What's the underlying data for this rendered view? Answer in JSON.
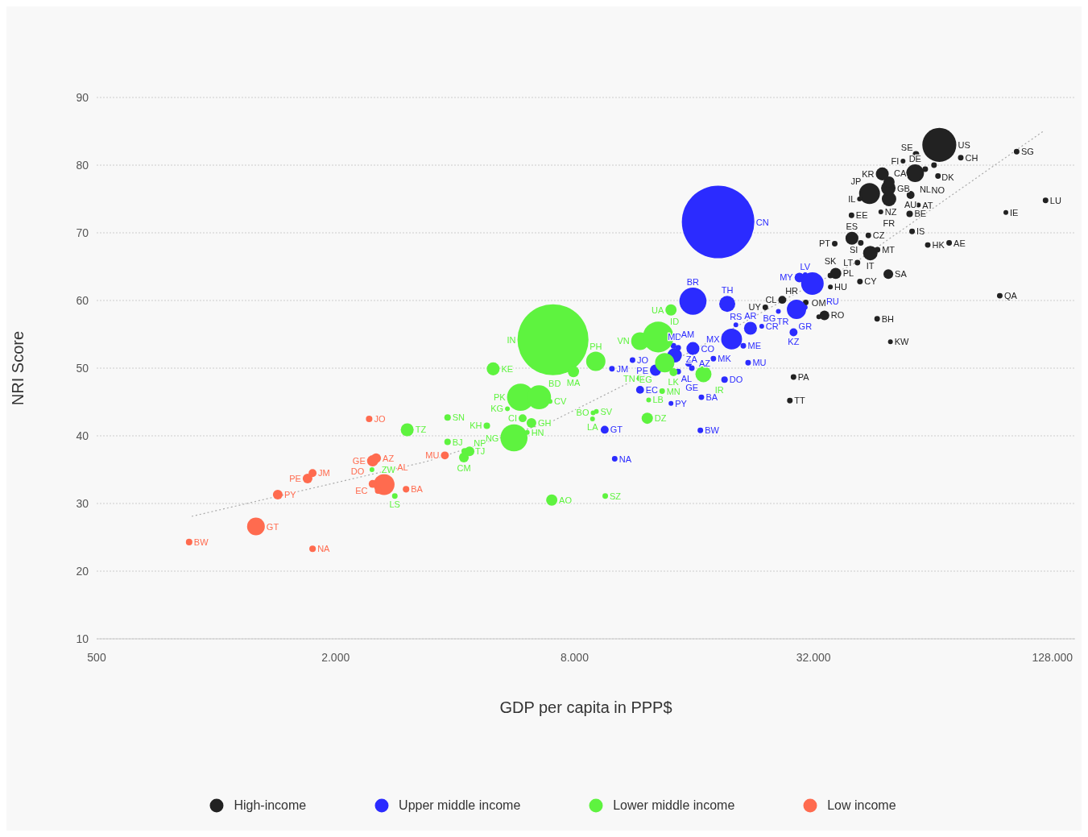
{
  "chart_data": {
    "type": "bubble",
    "xlabel": "GDP per capita in PPP$",
    "ylabel": "NRI Score",
    "log": "x",
    "grid": "y",
    "legend": "bottom",
    "xlim": [
      500,
      146000
    ],
    "xticks": [
      500,
      {
        "value": 2000,
        "label": "2.000"
      },
      {
        "value": 8000,
        "label": "8.000"
      },
      {
        "value": 32000,
        "label": "32.000"
      },
      {
        "value": 128000,
        "label": "128.000"
      }
    ],
    "ylim": [
      10,
      90
    ],
    "yticks": [
      10,
      20,
      30,
      40,
      50,
      60,
      70,
      80,
      90
    ],
    "series": [
      {
        "type": "line",
        "color": "#aaaaaa",
        "line_style": "dotted",
        "x": [
          868,
          3390,
          7060,
          16400,
          29000,
          40300,
          122000
        ],
        "values": [
          28.1,
          36.2,
          42.2,
          53.0,
          61.1,
          65.4,
          85.1
        ]
      },
      {
        "name": "High-income",
        "color": "#222222",
        "x": [
          24200,
          26700,
          30600,
          33000,
          34100,
          28500,
          27900,
          46300,
          50000,
          94300,
          35300,
          41900,
          35300,
          36400,
          49400,
          41300,
          44500,
          46400,
          42100,
          36200,
          40000,
          44000,
          56700,
          62100,
          70300,
          39900,
          47300,
          55900,
          49600,
          49400,
          49600,
          47700,
          44300,
          41800,
          56200,
          58800,
          57700,
          61200,
          53800,
          58000,
          66400,
          64400,
          65900,
          75200,
          104000,
          123000,
          97700
        ],
        "values": [
          59.0,
          60.1,
          59.7,
          57.6,
          57.8,
          48.7,
          45.2,
          57.3,
          53.9,
          60.7,
          62.0,
          62.8,
          63.7,
          64.0,
          63.9,
          65.6,
          67.0,
          67.5,
          68.5,
          68.4,
          69.2,
          69.6,
          70.2,
          68.2,
          68.5,
          72.6,
          73.1,
          72.8,
          75.0,
          76.6,
          77.5,
          78.7,
          75.8,
          75.0,
          75.6,
          74.1,
          78.8,
          79.4,
          80.6,
          81.6,
          83.0,
          80.0,
          78.4,
          81.1,
          82.0,
          74.8,
          73.0
        ],
        "sizes": [
          0.006,
          0.012,
          0.006,
          0.0044,
          0.018,
          0.006,
          0.006,
          0.006,
          0.0044,
          0.006,
          0.0044,
          0.006,
          0.006,
          0.024,
          0.018,
          0.006,
          0.04,
          0.006,
          0.006,
          0.006,
          0.032,
          0.006,
          0.006,
          0.006,
          0.006,
          0.006,
          0.0044,
          0.008,
          0.04,
          0.04,
          0.024,
          0.032,
          0.083,
          0.0044,
          0.012,
          0.0044,
          0.06,
          0.006,
          0.0044,
          0.008,
          0.22,
          0.006,
          0.006,
          0.006,
          0.006,
          0.006,
          0.0044
        ],
        "value_labels": [
          "UY",
          "CL",
          "HR",
          "OM",
          "RO",
          "PA",
          "TT",
          "BH",
          "KW",
          "QA",
          "HU",
          "CY",
          "SK",
          "PL",
          "SA",
          "LT",
          "IT",
          "MT",
          "SI",
          "PT",
          "ES",
          "CZ",
          "IS",
          "HK",
          "AE",
          "EE",
          "NZ",
          "BE",
          "FR",
          "GB",
          "CA",
          "KR",
          "JP",
          "IL",
          "AU",
          "AT",
          "DE",
          "NL",
          "FI",
          "SE",
          "US",
          "DK",
          "NO",
          "CH",
          "SG",
          "LU",
          "IE"
        ]
      },
      {
        "name": "Upper middle income",
        "color": "#2b2bff",
        "x": [
          9940,
          11200,
          12800,
          11700,
          14000,
          9530,
          10100,
          16600,
          16700,
          19100,
          14300,
          14200,
          14600,
          15900,
          15500,
          15800,
          14600,
          17900,
          21900,
          21300,
          19900,
          20400,
          22200,
          23700,
          19400,
          15900,
          18400,
          26100,
          29000,
          30500,
          28500,
          29500,
          31800,
          30500
        ],
        "values": [
          49.9,
          51.2,
          49.7,
          46.8,
          44.8,
          40.9,
          36.6,
          40.8,
          45.7,
          48.3,
          51.9,
          53.3,
          53.0,
          52.9,
          50.7,
          50.0,
          49.5,
          51.4,
          50.8,
          53.3,
          54.3,
          56.4,
          55.9,
          56.2,
          59.5,
          59.9,
          71.6,
          58.4,
          58.7,
          59.0,
          55.3,
          63.4,
          62.5,
          63.8
        ],
        "sizes": [
          0.006,
          0.006,
          0.024,
          0.012,
          0.0044,
          0.012,
          0.006,
          0.006,
          0.006,
          0.008,
          0.04,
          0.006,
          0.006,
          0.032,
          0.008,
          0.006,
          0.006,
          0.006,
          0.006,
          0.006,
          0.083,
          0.0044,
          0.032,
          0.0044,
          0.049,
          0.14,
          1,
          0.0044,
          0.071,
          0.0044,
          0.012,
          0.018,
          0.097,
          0.0044
        ],
        "value_labels": [
          "JM",
          "JO",
          "PE",
          "EC",
          "PY",
          "GT",
          "NA",
          "BW",
          "BA",
          "DO",
          "MD",
          "AM",
          "ZA",
          "CO",
          "AZ",
          "GE",
          "AL",
          "MK",
          "MU",
          "ME",
          "MX",
          "RS",
          "AR",
          "CR",
          "TH",
          "BR",
          "CN",
          "BG",
          "TR",
          "GR",
          "KZ",
          "MY",
          "RU",
          "LV"
        ]
      },
      {
        "name": "Lower middle income",
        "color": "#5ef33f",
        "x": [
          2470,
          2820,
          3030,
          3830,
          3830,
          4230,
          4350,
          4210,
          4810,
          4990,
          5420,
          5850,
          6510,
          6940,
          5920,
          6230,
          5630,
          6080,
          7010,
          9560,
          7060,
          7950,
          9050,
          11700,
          13000,
          14000,
          13500,
          14200,
          11700,
          13300,
          12300,
          12200,
          9080,
          8910,
          8880,
          16900
        ],
        "values": [
          35.0,
          31.1,
          40.9,
          42.7,
          39.1,
          37.7,
          37.7,
          36.8,
          41.5,
          49.9,
          44.0,
          45.7,
          45.7,
          45.1,
          42.6,
          41.9,
          39.7,
          40.5,
          30.5,
          31.1,
          54.2,
          49.5,
          51.0,
          54.0,
          54.6,
          58.6,
          50.8,
          49.4,
          48.5,
          46.6,
          45.3,
          42.6,
          43.6,
          43.4,
          42.5,
          49.1
        ],
        "sizes": [
          0.0044,
          0.006,
          0.032,
          0.008,
          0.008,
          0.008,
          0.018,
          0.018,
          0.008,
          0.032,
          0.0044,
          0.14,
          0.11,
          0.0044,
          0.012,
          0.018,
          0.14,
          0.0044,
          0.024,
          0.006,
          0.96,
          0.024,
          0.071,
          0.06,
          0.18,
          0.024,
          0.071,
          0.012,
          0.008,
          0.006,
          0.0044,
          0.024,
          0.0044,
          0.0044,
          0.0044,
          0.049
        ],
        "value_labels": [
          "ZW",
          "LS",
          "TZ",
          "SN",
          "BJ",
          "TJ",
          "NP",
          "CM",
          "KH",
          "KE",
          "KG",
          "PK",
          "BD",
          "CV",
          "CI",
          "GH",
          "NG",
          "HN",
          "AO",
          "SZ",
          "IN",
          "MA",
          "PH",
          "VN",
          "ID",
          "UA",
          "EG",
          "LK",
          "TN",
          "MN",
          "LB",
          "DZ",
          "SV",
          "BO",
          "LA",
          "IR"
        ]
      },
      {
        "name": "Low income",
        "color": "#ff6b4f",
        "x": [
          855,
          1260,
          1750,
          1430,
          1700,
          1750,
          2480,
          2530,
          2650,
          2480,
          2560,
          3010,
          2430,
          3770
        ],
        "values": [
          24.3,
          26.6,
          23.3,
          31.3,
          33.7,
          34.5,
          36.3,
          36.7,
          32.8,
          32.9,
          31.9,
          32.1,
          42.5,
          37.1
        ],
        "sizes": [
          0.008,
          0.06,
          0.008,
          0.018,
          0.018,
          0.012,
          0.024,
          0.018,
          0.083,
          0.012,
          0.008,
          0.008,
          0.008,
          0.012
        ],
        "value_labels": [
          "BW",
          "GT",
          "NA",
          "PY",
          "PE",
          "JM",
          "GE",
          "AZ",
          "AL",
          "DO",
          "EC",
          "BA",
          "JO",
          "MU"
        ]
      }
    ]
  }
}
